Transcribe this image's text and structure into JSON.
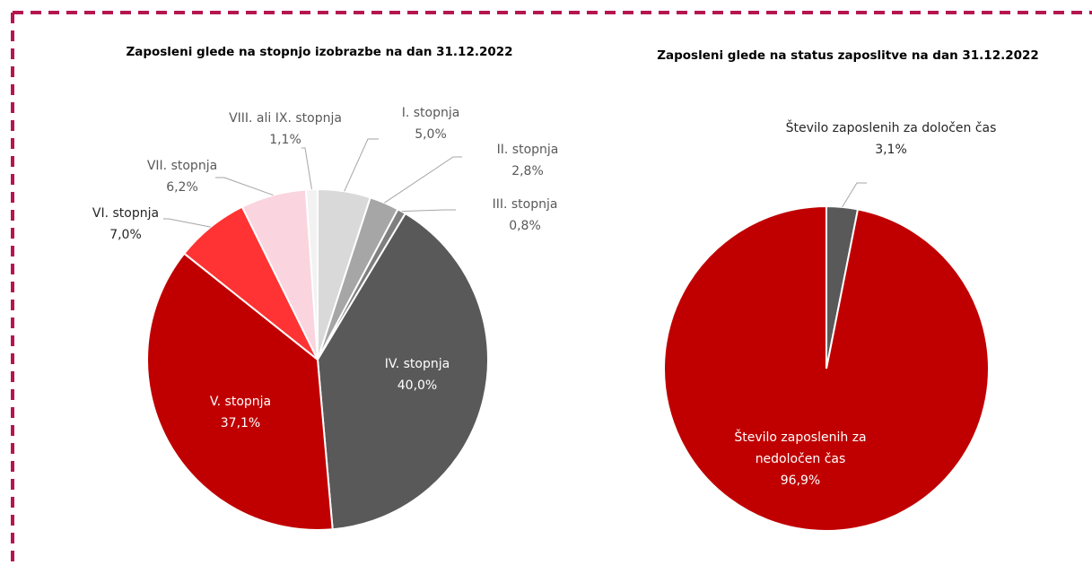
{
  "chart_data": [
    {
      "type": "pie",
      "title": "Zaposleni glede na stopnjo izobrazbe na dan 31.12.2022",
      "categories": [
        "I. stopnja",
        "II. stopnja",
        "III. stopnja",
        "IV. stopnja",
        "V. stopnja",
        "VI. stopnja",
        "VII. stopnja",
        "VIII. ali IX. stopnja"
      ],
      "values": [
        5.0,
        2.8,
        0.8,
        40.0,
        37.1,
        7.0,
        6.2,
        1.1
      ],
      "value_labels": [
        "5,0%",
        "2,8%",
        "0,8%",
        "40,0%",
        "37,1%",
        "7,0%",
        "6,2%",
        "1,1%"
      ],
      "colors": [
        "#d9d9d9",
        "#a6a6a6",
        "#7f7f7f",
        "#595959",
        "#c00000",
        "#ff3333",
        "#fad4de",
        "#f2f2f2"
      ]
    },
    {
      "type": "pie",
      "title": "Zaposleni glede na status zaposlitve na dan 31.12.2022",
      "categories": [
        "Število zaposlenih za določen čas",
        "Število zaposlenih za nedoločen čas"
      ],
      "values": [
        3.1,
        96.9
      ],
      "value_labels": [
        "3,1%",
        "96,9%"
      ],
      "colors": [
        "#595959",
        "#c00000"
      ]
    }
  ]
}
